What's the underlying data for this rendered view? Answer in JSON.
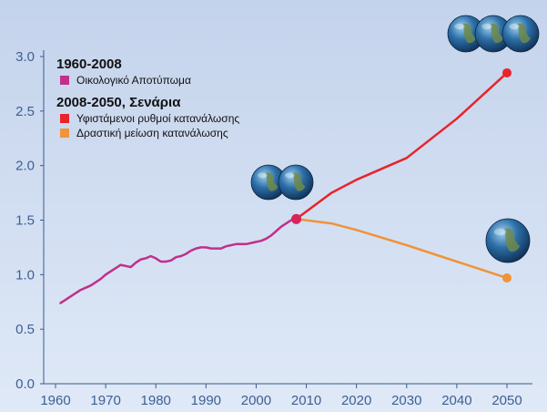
{
  "chart_data": {
    "type": "line",
    "x_ticks": [
      "1960",
      "1970",
      "1980",
      "1990",
      "2000",
      "2010",
      "2020",
      "2030",
      "2040",
      "2050"
    ],
    "y_ticks": [
      "0.0",
      "0.5",
      "1.0",
      "1.5",
      "2.0",
      "2.5",
      "3.0"
    ],
    "xlim": [
      1958,
      2055
    ],
    "ylim": [
      0,
      3.1
    ],
    "grid": false,
    "legend_position": "top-left",
    "legend": {
      "group1_title": "1960-2008",
      "group1_items": [
        "Οικολογικό Αποτύπωμα"
      ],
      "group2_title": "2008-2050, Σενάρια",
      "group2_items": [
        "Υφιστάμενοι ρυθμοί κατανάλωσης",
        "Δραστική μείωση κατανάλωσης"
      ]
    },
    "series": [
      {
        "name": "Οικολογικό Αποτύπωμα",
        "color": "#c0308a",
        "x": [
          1961,
          1962,
          1963,
          1964,
          1965,
          1966,
          1967,
          1968,
          1969,
          1970,
          1971,
          1972,
          1973,
          1974,
          1975,
          1976,
          1977,
          1978,
          1979,
          1980,
          1981,
          1982,
          1983,
          1984,
          1985,
          1986,
          1987,
          1988,
          1989,
          1990,
          1991,
          1992,
          1993,
          1994,
          1995,
          1996,
          1997,
          1998,
          1999,
          2000,
          2001,
          2002,
          2003,
          2004,
          2005,
          2006,
          2007,
          2008
        ],
        "y": [
          0.74,
          0.77,
          0.8,
          0.83,
          0.86,
          0.88,
          0.9,
          0.93,
          0.96,
          1.0,
          1.03,
          1.06,
          1.09,
          1.08,
          1.07,
          1.11,
          1.14,
          1.15,
          1.17,
          1.15,
          1.12,
          1.12,
          1.13,
          1.16,
          1.17,
          1.19,
          1.22,
          1.24,
          1.25,
          1.25,
          1.24,
          1.24,
          1.24,
          1.26,
          1.27,
          1.28,
          1.28,
          1.28,
          1.29,
          1.3,
          1.31,
          1.33,
          1.36,
          1.4,
          1.44,
          1.47,
          1.5,
          1.51
        ]
      },
      {
        "name": "Υφιστάμενοι ρυθμοί κατανάλωσης",
        "color": "#e8232a",
        "x": [
          2008,
          2015,
          2020,
          2030,
          2040,
          2050
        ],
        "y": [
          1.51,
          1.75,
          1.87,
          2.07,
          2.43,
          2.85
        ]
      },
      {
        "name": "Δραστική μείωση κατανάλωσης",
        "color": "#f0933a",
        "x": [
          2008,
          2015,
          2020,
          2030,
          2040,
          2050
        ],
        "y": [
          1.51,
          1.47,
          1.41,
          1.27,
          1.12,
          0.97
        ]
      }
    ],
    "globe_markers": [
      {
        "x": 2008,
        "y": 1.51,
        "count": 2
      },
      {
        "x": 2050,
        "y": 2.85,
        "count": 3
      },
      {
        "x": 2050,
        "y": 0.97,
        "count": 1
      }
    ]
  },
  "colors": {
    "bg_top": "#c4d3ec",
    "bg_bottom": "#dfe9f7",
    "axis": "#3a5a8c",
    "tick_label": "#3d5f94",
    "magenta": "#c0308a",
    "red": "#e8232a",
    "orange": "#f0933a"
  }
}
